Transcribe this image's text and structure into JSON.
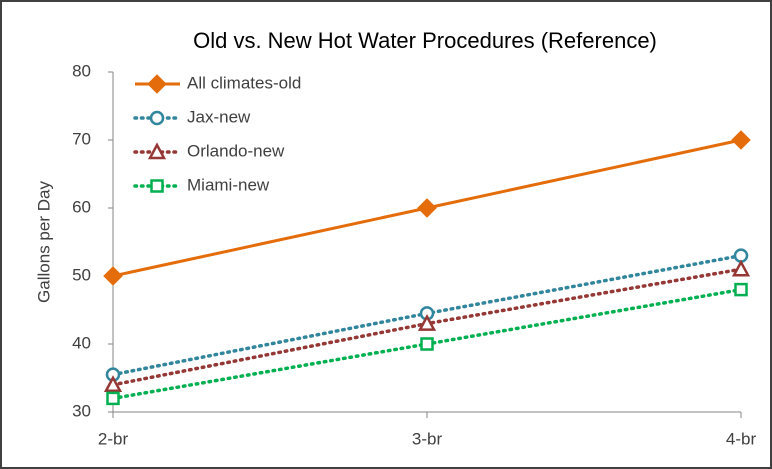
{
  "chart_data": {
    "type": "line",
    "title": "Old vs. New Hot Water Procedures (Reference)",
    "y_label": "Gallons per Day",
    "categories": [
      "2-br",
      "3-br",
      "4-br"
    ],
    "series": [
      {
        "name": "All climates-old",
        "color": "#e46c0a",
        "marker": "diamond",
        "dash": "solid",
        "values": [
          50,
          60,
          70
        ]
      },
      {
        "name": "Jax-new",
        "color": "#31859c",
        "marker": "circle",
        "dash": "dotted",
        "values": [
          35.5,
          44.5,
          53
        ]
      },
      {
        "name": "Orlando-new",
        "color": "#953735",
        "marker": "triangle",
        "dash": "dotted",
        "values": [
          34,
          43,
          51
        ]
      },
      {
        "name": "Miami-new",
        "color": "#00b050",
        "marker": "square",
        "dash": "dotted",
        "values": [
          32,
          40,
          48
        ]
      }
    ],
    "ylim": [
      30,
      80
    ],
    "yticks": [
      30,
      40,
      50,
      60,
      70,
      80
    ],
    "grid": false,
    "legend": "top-left"
  }
}
